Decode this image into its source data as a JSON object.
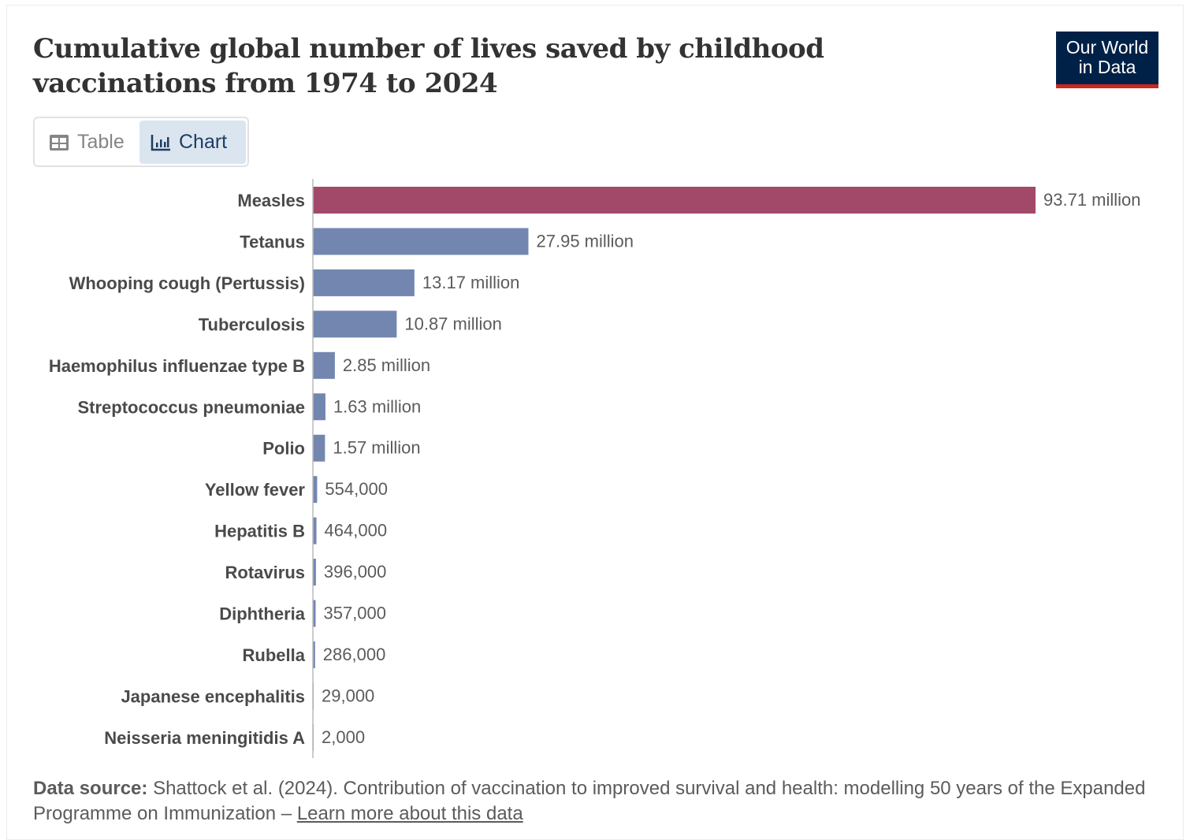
{
  "header": {
    "title": "Cumulative global number of lives saved by childhood vaccinations from 1974 to 2024",
    "logo_line1": "Our World",
    "logo_line2": "in Data"
  },
  "tabs": {
    "table": "Table",
    "chart": "Chart",
    "active": "chart"
  },
  "colors": {
    "highlight": "#a2496a",
    "default": "#7386b0",
    "logo_bg": "#002147",
    "logo_accent": "#ce261e"
  },
  "chart_data": {
    "type": "bar",
    "orientation": "horizontal",
    "title": "Cumulative global number of lives saved by childhood vaccinations from 1974 to 2024",
    "unit": "lives saved",
    "categories": [
      "Measles",
      "Tetanus",
      "Whooping cough (Pertussis)",
      "Tuberculosis",
      "Haemophilus influenzae type B",
      "Streptococcus pneumoniae",
      "Polio",
      "Yellow fever",
      "Hepatitis B",
      "Rotavirus",
      "Diphtheria",
      "Rubella",
      "Japanese encephalitis",
      "Neisseria meningitidis A"
    ],
    "values": [
      93710000,
      27950000,
      13170000,
      10870000,
      2850000,
      1630000,
      1570000,
      554000,
      464000,
      396000,
      357000,
      286000,
      29000,
      2000
    ],
    "labels": [
      "93.71 million",
      "27.95 million",
      "13.17 million",
      "10.87 million",
      "2.85 million",
      "1.63 million",
      "1.57 million",
      "554,000",
      "464,000",
      "396,000",
      "357,000",
      "286,000",
      "29,000",
      "2,000"
    ],
    "highlighted": [
      "Measles"
    ],
    "xlim": [
      0,
      93710000
    ]
  },
  "footer": {
    "source_label": "Data source:",
    "source_text": "Shattock et al. (2024). Contribution of vaccination to improved survival and health: modelling 50 years of the Expanded Programme on Immunization",
    "separator": "–",
    "learn_more": "Learn more about this data"
  }
}
